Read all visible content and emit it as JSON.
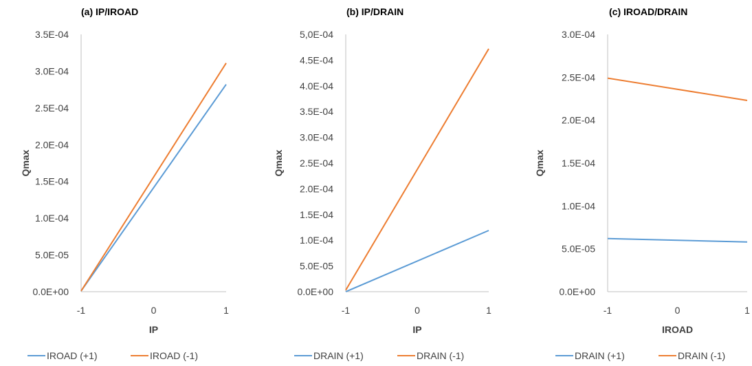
{
  "colors": {
    "series_pos": "#5B9BD5",
    "series_neg": "#ED7D31",
    "axis": "#BFBFBF",
    "text": "#404040"
  },
  "chart_data": [
    {
      "type": "line",
      "title": "(a) IP/IROAD",
      "xlabel": "IP",
      "ylabel": "Qmax",
      "categories": [
        "-1",
        "0",
        "1"
      ],
      "x": [
        -1,
        1
      ],
      "yticks": [
        "0.0E+00",
        "5.0E-05",
        "1.0E-04",
        "1.5E-04",
        "2.0E-04",
        "2.5E-04",
        "3.0E-04",
        "3.5E-04"
      ],
      "ylim": [
        0,
        0.00035
      ],
      "series": [
        {
          "name": "IROAD (+1)",
          "values": [
            1e-06,
            0.000282
          ]
        },
        {
          "name": "IROAD (-1)",
          "values": [
            1e-06,
            0.000311
          ]
        }
      ],
      "legend": "bottom",
      "grid": false
    },
    {
      "type": "line",
      "title": "(b) IP/DRAIN",
      "xlabel": "IP",
      "ylabel": "Qmax",
      "categories": [
        "-1",
        "0",
        "1"
      ],
      "x": [
        -1,
        1
      ],
      "yticks": [
        "0.0E+00",
        "5.0E-05",
        "1.0E-04",
        "1.5E-04",
        "2.0E-04",
        "2.5E-04",
        "3.0E-04",
        "3.5E-04",
        "4.0E-04",
        "4.5E-04",
        "5,0E-04"
      ],
      "ylim": [
        0,
        0.0005
      ],
      "series": [
        {
          "name": "DRAIN (+1)",
          "values": [
            0,
            0.000119
          ]
        },
        {
          "name": "DRAIN (-1)",
          "values": [
            3e-06,
            0.000472
          ]
        }
      ],
      "legend": "bottom",
      "grid": false
    },
    {
      "type": "line",
      "title": "(c) IROAD/DRAIN",
      "xlabel": "IROAD",
      "ylabel": "Qmax",
      "categories": [
        "-1",
        "0",
        "1"
      ],
      "x": [
        -1,
        1
      ],
      "yticks": [
        "0.0E+00",
        "5.0E-05",
        "1.0E-04",
        "1.5E-04",
        "2.0E-04",
        "2.5E-04",
        "3.0E-04"
      ],
      "ylim": [
        0,
        0.0003
      ],
      "series": [
        {
          "name": "DRAIN (+1)",
          "values": [
            6.2e-05,
            5.8e-05
          ]
        },
        {
          "name": "DRAIN (-1)",
          "values": [
            0.000249,
            0.000223
          ]
        }
      ],
      "legend": "bottom",
      "grid": false
    }
  ]
}
